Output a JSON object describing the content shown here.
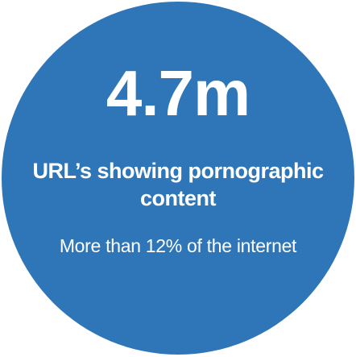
{
  "stat": {
    "value": "4.7m",
    "headline": "URL’s showing pornographic content",
    "detail": "More than 12% of the internet"
  },
  "colors": {
    "circle": "#2f76b9",
    "text": "#ffffff",
    "background": "#ffffff"
  }
}
